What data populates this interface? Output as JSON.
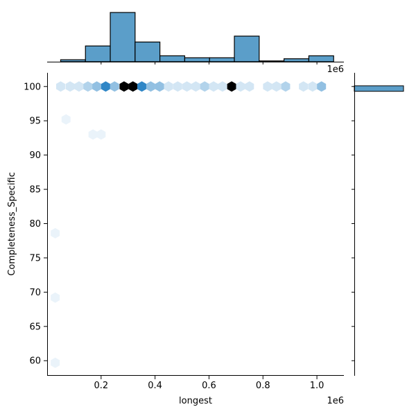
{
  "chart_data": {
    "type": "hexbin-joint",
    "xlabel": "longest",
    "ylabel": "Completeness_Specific",
    "x_offset_label": "1e6",
    "top_offset_label": "1e6",
    "xlim": [
      0.0,
      1.1
    ],
    "ylim": [
      57.8,
      102.0
    ],
    "x_ticks": [
      {
        "value": 0.2,
        "label": "0.2"
      },
      {
        "value": 0.4,
        "label": "0.4"
      },
      {
        "value": 0.6,
        "label": "0.6"
      },
      {
        "value": 0.8,
        "label": "0.8"
      },
      {
        "value": 1.0,
        "label": "1.0"
      }
    ],
    "y_ticks": [
      {
        "value": 60,
        "label": "60"
      },
      {
        "value": 65,
        "label": "65"
      },
      {
        "value": 70,
        "label": "70"
      },
      {
        "value": 75,
        "label": "75"
      },
      {
        "value": 80,
        "label": "80"
      },
      {
        "value": 85,
        "label": "85"
      },
      {
        "value": 90,
        "label": "90"
      },
      {
        "value": 95,
        "label": "95"
      },
      {
        "value": 100,
        "label": "100"
      }
    ],
    "hexbins": [
      {
        "x": 0.05,
        "y": 100,
        "count": 1
      },
      {
        "x": 0.085,
        "y": 100,
        "count": 1
      },
      {
        "x": 0.118,
        "y": 100,
        "count": 1
      },
      {
        "x": 0.151,
        "y": 100,
        "count": 2
      },
      {
        "x": 0.184,
        "y": 100,
        "count": 3
      },
      {
        "x": 0.217,
        "y": 100,
        "count": 6
      },
      {
        "x": 0.25,
        "y": 100,
        "count": 3
      },
      {
        "x": 0.285,
        "y": 100,
        "count": 10
      },
      {
        "x": 0.318,
        "y": 100,
        "count": 10
      },
      {
        "x": 0.351,
        "y": 100,
        "count": 6
      },
      {
        "x": 0.384,
        "y": 100,
        "count": 3
      },
      {
        "x": 0.417,
        "y": 100,
        "count": 3
      },
      {
        "x": 0.45,
        "y": 100,
        "count": 1
      },
      {
        "x": 0.484,
        "y": 100,
        "count": 1
      },
      {
        "x": 0.518,
        "y": 100,
        "count": 1
      },
      {
        "x": 0.551,
        "y": 100,
        "count": 1
      },
      {
        "x": 0.584,
        "y": 100,
        "count": 2
      },
      {
        "x": 0.617,
        "y": 100,
        "count": 1
      },
      {
        "x": 0.65,
        "y": 100,
        "count": 1
      },
      {
        "x": 0.684,
        "y": 100,
        "count": 10
      },
      {
        "x": 0.717,
        "y": 100,
        "count": 1
      },
      {
        "x": 0.75,
        "y": 100,
        "count": 1
      },
      {
        "x": 0.817,
        "y": 100,
        "count": 1
      },
      {
        "x": 0.85,
        "y": 100,
        "count": 1
      },
      {
        "x": 0.884,
        "y": 100,
        "count": 2
      },
      {
        "x": 0.95,
        "y": 100,
        "count": 1
      },
      {
        "x": 0.984,
        "y": 100,
        "count": 1
      },
      {
        "x": 1.017,
        "y": 100,
        "count": 3
      },
      {
        "x": 0.07,
        "y": 95.2,
        "count": 0.3
      },
      {
        "x": 0.17,
        "y": 93.0,
        "count": 0.3
      },
      {
        "x": 0.2,
        "y": 93.0,
        "count": 0.3
      },
      {
        "x": 0.03,
        "y": 78.6,
        "count": 0.3
      },
      {
        "x": 0.03,
        "y": 69.2,
        "count": 0.3
      },
      {
        "x": 0.03,
        "y": 59.7,
        "count": 0.3
      }
    ],
    "top_histogram": {
      "bin_edges": [
        0.05,
        0.142,
        0.234,
        0.326,
        0.418,
        0.51,
        0.602,
        0.694,
        0.786,
        0.878,
        0.97,
        1.062
      ],
      "counts": [
        1,
        8,
        25,
        10,
        3,
        2,
        2,
        13,
        0.4,
        1.5,
        3
      ],
      "max": 25
    },
    "right_histogram": {
      "bins": [
        {
          "y_low": 99.3,
          "y_high": 100.1,
          "count": 1
        }
      ],
      "max": 1
    },
    "colors": {
      "hist_fill": "#5b9ec9",
      "hist_edge": "#000000",
      "hex_low": "#f4f9fd",
      "hex_mid": "#2f86c6",
      "hex_high": "#000000"
    }
  }
}
